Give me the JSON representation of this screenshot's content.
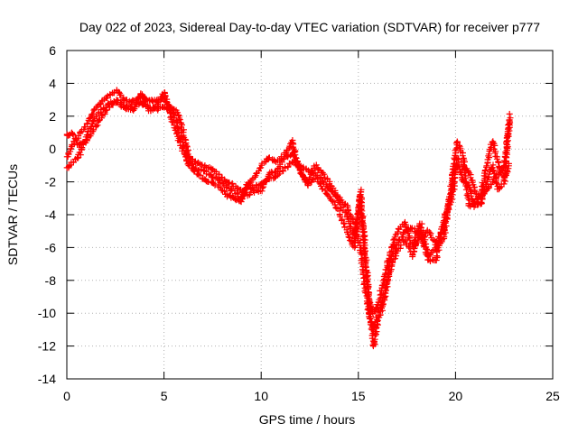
{
  "chart_data": {
    "type": "scatter",
    "title": "Day 022 of 2023, Sidereal Day-to-day VTEC variation (SDTVAR) for receiver p777",
    "xlabel": "GPS time / hours",
    "ylabel": "SDTVAR / TECUs",
    "xlim": [
      0,
      25
    ],
    "ylim": [
      -14,
      6
    ],
    "xticks": [
      "0",
      "5",
      "10",
      "15",
      "20",
      "25"
    ],
    "yticks": [
      "6",
      "4",
      "2",
      "0",
      "-2",
      "-4",
      "-6",
      "-8",
      "-10",
      "-12",
      "-14"
    ],
    "grid": true,
    "marker": "plus",
    "marker_color": "#ff0000",
    "series": [
      {
        "x": [
          0,
          0.3,
          0.6,
          1.0,
          1.4,
          1.8,
          2.2,
          2.6,
          3.0,
          3.4,
          3.8,
          4.2,
          4.6,
          5.0,
          5.4,
          5.7,
          6.0,
          6.3,
          6.6,
          7.0,
          7.4,
          7.8,
          8.2,
          8.6,
          9.0,
          9.3,
          9.6,
          10.0,
          10.4,
          10.8,
          11.2,
          11.6,
          12.0,
          12.4,
          12.8,
          13.2,
          13.6,
          14.0,
          14.4,
          14.8,
          15.1,
          15.4,
          15.6,
          15.8,
          16.0,
          16.3,
          16.6,
          17.0,
          17.4,
          17.8,
          18.2,
          18.6,
          19.0,
          19.4,
          19.8,
          20.1,
          20.4,
          20.7,
          21.0,
          21.3,
          21.6,
          21.9,
          22.2,
          22.5,
          22.8
        ],
        "y": [
          -0.5,
          0.3,
          0.8,
          1.5,
          2.3,
          2.9,
          3.3,
          3.6,
          3.0,
          2.9,
          3.2,
          3.0,
          2.9,
          3.1,
          2.5,
          2.2,
          1.0,
          -0.5,
          -0.8,
          -1.0,
          -1.2,
          -1.5,
          -2.0,
          -2.2,
          -2.6,
          -2.9,
          -2.3,
          -2.2,
          -1.8,
          -1.7,
          -1.2,
          -0.8,
          -1.0,
          -1.3,
          -1.5,
          -2.0,
          -2.6,
          -3.0,
          -3.5,
          -4.5,
          -6.0,
          -9.0,
          -10.5,
          -11.0,
          -10.0,
          -9.0,
          -7.0,
          -5.8,
          -5.0,
          -4.8,
          -5.5,
          -5.0,
          -5.8,
          -4.8,
          -2.5,
          -0.5,
          -1.0,
          -1.5,
          -2.5,
          -3.0,
          -2.5,
          -2.0,
          -1.5,
          -1.0,
          1.8
        ]
      },
      {
        "x": [
          0,
          0.3,
          0.6,
          1.0,
          1.4,
          1.8,
          2.2,
          2.6,
          3.0,
          3.4,
          3.8,
          4.2,
          4.6,
          5.0,
          5.4,
          5.7,
          6.0,
          6.3,
          6.6,
          7.0,
          7.4,
          7.8,
          8.2,
          8.6,
          9.0,
          9.3,
          9.6,
          10.0,
          10.4,
          10.8,
          11.2,
          11.6,
          12.0,
          12.4,
          12.8,
          13.2,
          13.6,
          14.0,
          14.4,
          14.8,
          15.1,
          15.4,
          15.6,
          15.8,
          16.0,
          16.3,
          16.6,
          17.0,
          17.4,
          17.8,
          18.2,
          18.6,
          19.0,
          19.4,
          19.8,
          20.1,
          20.4,
          20.7,
          21.0,
          21.3,
          21.6,
          21.9,
          22.2,
          22.5,
          22.8
        ],
        "y": [
          0.8,
          1.0,
          0.2,
          0.5,
          1.2,
          2.0,
          2.6,
          3.0,
          2.6,
          2.6,
          2.8,
          2.6,
          2.4,
          2.6,
          2.3,
          1.5,
          0.3,
          -0.8,
          -1.2,
          -1.3,
          -1.6,
          -1.9,
          -2.3,
          -2.6,
          -3.0,
          -2.2,
          -1.8,
          -1.0,
          -0.5,
          -0.8,
          -0.3,
          0.5,
          -1.5,
          -2.0,
          -1.0,
          -1.5,
          -2.2,
          -3.2,
          -4.0,
          -5.5,
          -3.0,
          -7.5,
          -9.5,
          -10.0,
          -9.5,
          -8.0,
          -6.5,
          -5.0,
          -4.5,
          -6.0,
          -4.5,
          -6.5,
          -6.0,
          -5.5,
          -2.0,
          0.5,
          -0.5,
          -3.5,
          -3.2,
          -2.8,
          -1.0,
          0.5,
          -1.0,
          -1.8,
          -0.8
        ]
      },
      {
        "x": [
          0,
          0.3,
          0.6,
          1.0,
          1.4,
          1.8,
          2.2,
          2.6,
          3.0,
          3.4,
          3.8,
          4.2,
          4.6,
          5.0,
          5.4,
          5.7,
          6.0,
          6.3,
          6.6,
          7.0,
          7.4,
          7.8,
          8.2,
          8.6,
          9.0,
          9.3,
          9.6,
          10.0,
          10.4,
          10.8,
          11.2,
          11.6,
          12.0,
          12.4,
          12.8,
          13.2,
          13.6,
          14.0,
          14.4,
          14.8,
          15.1,
          15.4,
          15.6,
          15.8,
          16.0,
          16.3,
          16.6,
          17.0,
          17.4,
          17.8,
          18.2,
          18.6,
          19.0,
          19.4,
          19.8,
          20.1,
          20.4,
          20.7,
          21.0,
          21.3,
          21.6,
          21.9,
          22.2,
          22.5,
          22.8
        ],
        "y": [
          -1.2,
          -0.8,
          -0.5,
          0.8,
          1.8,
          2.4,
          2.8,
          2.9,
          2.4,
          2.4,
          3.4,
          2.3,
          2.5,
          3.5,
          1.8,
          0.8,
          -0.2,
          -1.0,
          -1.4,
          -1.8,
          -2.0,
          -2.3,
          -2.8,
          -3.0,
          -3.2,
          -2.0,
          -2.6,
          -2.5,
          -1.5,
          -1.3,
          -0.5,
          -0.3,
          -1.2,
          -2.2,
          -1.8,
          -2.5,
          -3.0,
          -3.8,
          -5.0,
          -6.0,
          -2.5,
          -7.0,
          -10.0,
          -12.0,
          -10.5,
          -9.5,
          -7.5,
          -6.2,
          -5.5,
          -6.5,
          -5.0,
          -6.8,
          -6.8,
          -4.2,
          -3.0,
          -1.0,
          -2.0,
          -2.2,
          -3.5,
          -3.3,
          -2.0,
          -1.0,
          -2.5,
          -2.0,
          2.2
        ]
      }
    ]
  }
}
